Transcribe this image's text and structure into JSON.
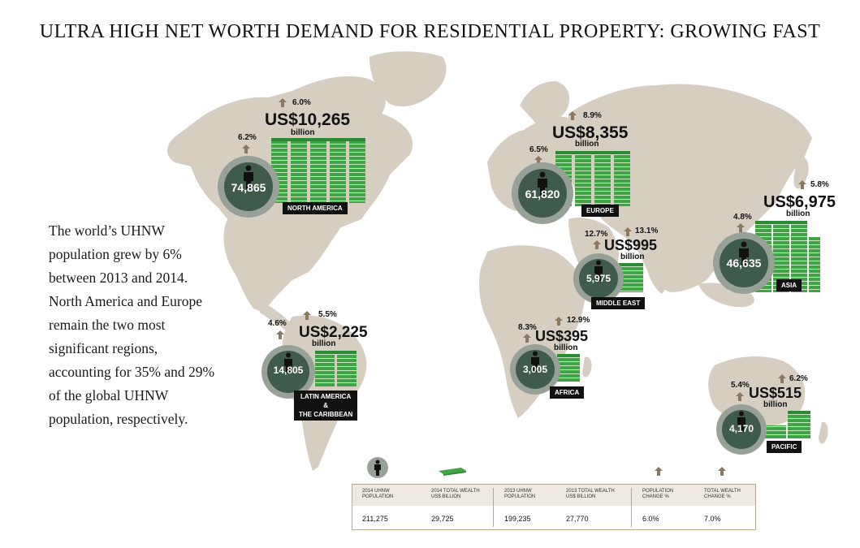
{
  "title": "ULTRA HIGH NET WORTH DEMAND FOR RESIDENTIAL PROPERTY: GROWING FAST",
  "intro": "The world’s UHNW population grew by 6% between 2013 and 2014. North America and Europe remain the two most significant regions, accounting for 35% and 29% of the global UHNW population, respectively.",
  "colors": {
    "land": "#d6cfc1",
    "circle_outer": "#98a197",
    "circle_inner": "#3f5b4b",
    "money": "#3fa544",
    "arrow": "#8a7960"
  },
  "regions": {
    "north_america": {
      "name": "NORTH AMERICA",
      "population": "74,865",
      "pop_change": "6.2%",
      "wealth": "US$10,265",
      "unit": "billion",
      "wealth_change": "6.0%"
    },
    "europe": {
      "name": "EUROPE",
      "population": "61,820",
      "pop_change": "6.5%",
      "wealth": "US$8,355",
      "unit": "billion",
      "wealth_change": "8.9%"
    },
    "asia": {
      "name": "ASIA",
      "population": "46,635",
      "pop_change": "4.8%",
      "wealth": "US$6,975",
      "unit": "billion",
      "wealth_change": "5.8%"
    },
    "middle_east": {
      "name": "MIDDLE EAST",
      "population": "5,975",
      "pop_change": "12.7%",
      "wealth": "US$995",
      "unit": "billion",
      "wealth_change": "13.1%"
    },
    "latin_america": {
      "name_l1": "LATIN AMERICA",
      "name_l2": "&",
      "name_l3": "THE CARIBBEAN",
      "population": "14,805",
      "pop_change": "4.6%",
      "wealth": "US$2,225",
      "unit": "billion",
      "wealth_change": "5.5%"
    },
    "africa": {
      "name": "AFRICA",
      "population": "3,005",
      "pop_change": "8.3%",
      "wealth": "US$395",
      "unit": "billion",
      "wealth_change": "12.9%"
    },
    "pacific": {
      "name": "PACIFIC",
      "population": "4,170",
      "pop_change": "5.4%",
      "wealth": "US$515",
      "unit": "billion",
      "wealth_change": "6.2%"
    }
  },
  "summary": {
    "headers": {
      "pop2014_l1": "2014 UHNW",
      "pop2014_l2": "POPULATION",
      "wealth2014_l1": "2014 TOTAL WEALTH",
      "wealth2014_l2": "US$ BILLION",
      "pop2013_l1": "2013 UHNW",
      "pop2013_l2": "POPULATION",
      "wealth2013_l1": "2013 TOTAL WEALTH",
      "wealth2013_l2": "US$ BILLION",
      "popchange_l1": "POPULATION",
      "popchange_l2": "CHANGE %",
      "wealthchange_l1": "TOTAL WEALTH",
      "wealthchange_l2": "CHANGE %"
    },
    "values": {
      "pop2014": "211,275",
      "wealth2014": "29,725",
      "pop2013": "199,235",
      "wealth2013": "27,770",
      "popchange": "6.0%",
      "wealthchange": "7.0%"
    }
  }
}
